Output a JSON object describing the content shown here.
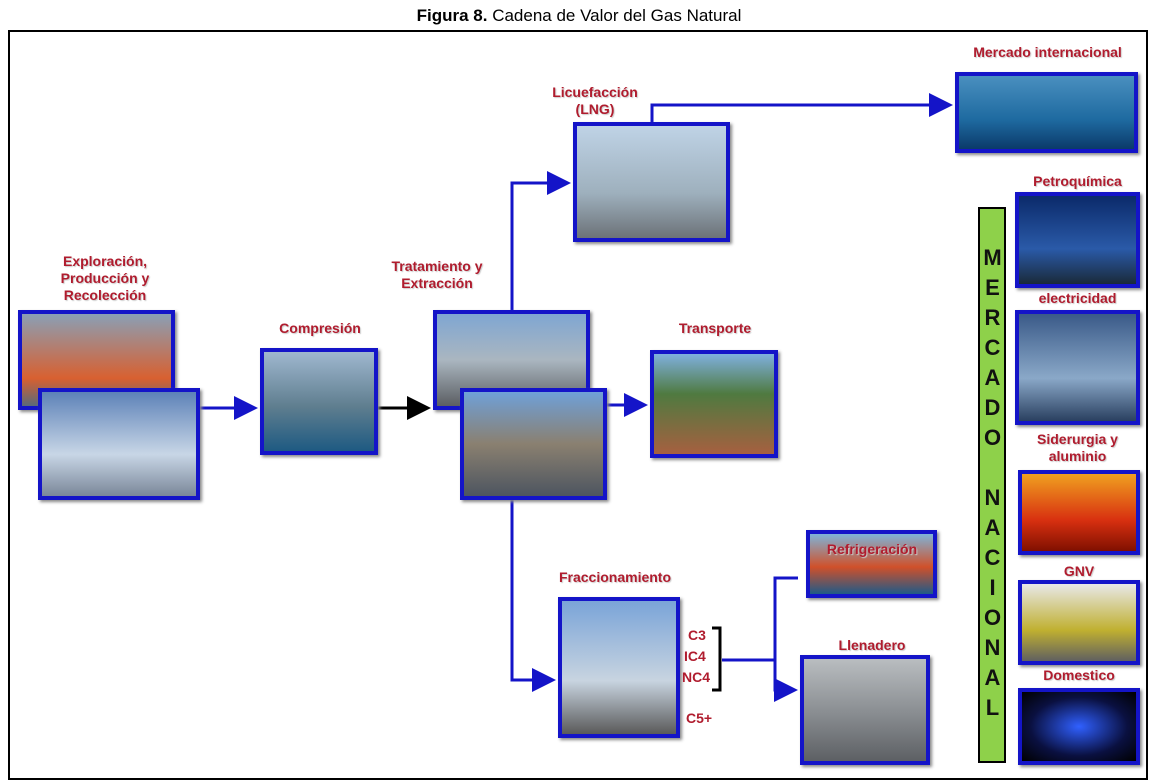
{
  "header": {
    "figure": "Figura 8.",
    "title": "Cadena de Valor del Gas Natural"
  },
  "nodes": {
    "exploracion": [
      "Exploración,",
      "Producción y",
      "Recolección"
    ],
    "compresion": [
      "Compresión"
    ],
    "tratamiento": [
      "Tratamiento y",
      "Extracción"
    ],
    "licuefaccion": [
      "Licuefacción",
      "(LNG)"
    ],
    "mercado_internacional": [
      "Mercado internacional"
    ],
    "transporte": [
      "Transporte"
    ],
    "fraccionamiento": [
      "Fraccionamiento"
    ],
    "refrigeracion": [
      "Refrigeración"
    ],
    "llenadero": [
      "Llenadero"
    ],
    "petroquimica": [
      "Petroquímica"
    ],
    "electricidad": [
      "electricidad"
    ],
    "siderurgia": [
      "Siderurgia y",
      "aluminio"
    ],
    "gnv": [
      "GNV"
    ],
    "domestico": [
      "Domestico"
    ]
  },
  "products": [
    "C3",
    "IC4",
    "NC4",
    "C5+"
  ],
  "mercado_nacional": "MERCADO NACIONAL"
}
